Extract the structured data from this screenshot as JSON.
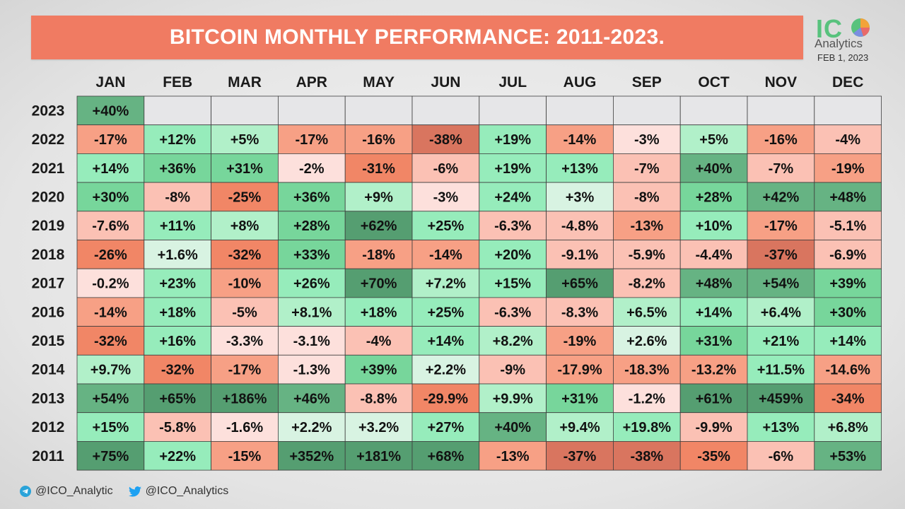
{
  "title": "BITCOIN MONTHLY PERFORMANCE: 2011-2023.",
  "logo": {
    "letters_green": "IC",
    "letters_orange": "O",
    "sub": "Analytics",
    "date": "FEB 1, 2023"
  },
  "footer": {
    "telegram": "@ICO_Analytic",
    "twitter": "@ICO_Analytics",
    "telegram_icon": "telegram-icon",
    "twitter_icon": "twitter-icon"
  },
  "colors": {
    "title_bg": "#f07b62",
    "neg": [
      "#fde0dc",
      "#fbc1b4",
      "#f7a085",
      "#f18666",
      "#d9755f"
    ],
    "pos": [
      "#d8f3e2",
      "#b1f0c9",
      "#96ecbb",
      "#77d69b",
      "#66b383",
      "#559e71"
    ],
    "empty": "#e6e6e8"
  },
  "chart_data": {
    "type": "heatmap",
    "columns": [
      "JAN",
      "FEB",
      "MAR",
      "APR",
      "MAY",
      "JUN",
      "JUL",
      "AUG",
      "SEP",
      "OCT",
      "NOV",
      "DEC"
    ],
    "rows": [
      {
        "year": "2023",
        "values": [
          "+40%",
          "",
          "",
          "",
          "",
          "",
          "",
          "",
          "",
          "",
          "",
          ""
        ]
      },
      {
        "year": "2022",
        "values": [
          "-17%",
          "+12%",
          "+5%",
          "-17%",
          "-16%",
          "-38%",
          "+19%",
          "-14%",
          "-3%",
          "+5%",
          "-16%",
          "-4%"
        ]
      },
      {
        "year": "2021",
        "values": [
          "+14%",
          "+36%",
          "+31%",
          "-2%",
          "-31%",
          "-6%",
          "+19%",
          "+13%",
          "-7%",
          "+40%",
          "-7%",
          "-19%"
        ]
      },
      {
        "year": "2020",
        "values": [
          "+30%",
          "-8%",
          "-25%",
          "+36%",
          "+9%",
          "-3%",
          "+24%",
          "+3%",
          "-8%",
          "+28%",
          "+42%",
          "+48%"
        ]
      },
      {
        "year": "2019",
        "values": [
          "-7.6%",
          "+11%",
          "+8%",
          "+28%",
          "+62%",
          "+25%",
          "-6.3%",
          "-4.8%",
          "-13%",
          "+10%",
          "-17%",
          "-5.1%"
        ]
      },
      {
        "year": "2018",
        "values": [
          "-26%",
          "+1.6%",
          "-32%",
          "+33%",
          "-18%",
          "-14%",
          "+20%",
          "-9.1%",
          "-5.9%",
          "-4.4%",
          "-37%",
          "-6.9%"
        ]
      },
      {
        "year": "2017",
        "values": [
          "-0.2%",
          "+23%",
          "-10%",
          "+26%",
          "+70%",
          "+7.2%",
          "+15%",
          "+65%",
          "-8.2%",
          "+48%",
          "+54%",
          "+39%"
        ]
      },
      {
        "year": "2016",
        "values": [
          "-14%",
          "+18%",
          "-5%",
          "+8.1%",
          "+18%",
          "+25%",
          "-6.3%",
          "-8.3%",
          "+6.5%",
          "+14%",
          "+6.4%",
          "+30%"
        ]
      },
      {
        "year": "2015",
        "values": [
          "-32%",
          "+16%",
          "-3.3%",
          "-3.1%",
          "-4%",
          "+14%",
          "+8.2%",
          "-19%",
          "+2.6%",
          "+31%",
          "+21%",
          "+14%"
        ]
      },
      {
        "year": "2014",
        "values": [
          "+9.7%",
          "-32%",
          "-17%",
          "-1.3%",
          "+39%",
          "+2.2%",
          "-9%",
          "-17.9%",
          "-18.3%",
          "-13.2%",
          "+11.5%",
          "-14.6%"
        ]
      },
      {
        "year": "2013",
        "values": [
          "+54%",
          "+65%",
          "+186%",
          "+46%",
          "-8.8%",
          "-29.9%",
          "+9.9%",
          "+31%",
          "-1.2%",
          "+61%",
          "+459%",
          "-34%"
        ]
      },
      {
        "year": "2012",
        "values": [
          "+15%",
          "-5.8%",
          "-1.6%",
          "+2.2%",
          "+3.2%",
          "+27%",
          "+40%",
          "+9.4%",
          "+19.8%",
          "-9.9%",
          "+13%",
          "+6.8%"
        ]
      },
      {
        "year": "2011",
        "values": [
          "+75%",
          "+22%",
          "-15%",
          "+352%",
          "+181%",
          "+68%",
          "-13%",
          "-37%",
          "-38%",
          "-35%",
          "-6%",
          "+53%"
        ]
      }
    ]
  }
}
